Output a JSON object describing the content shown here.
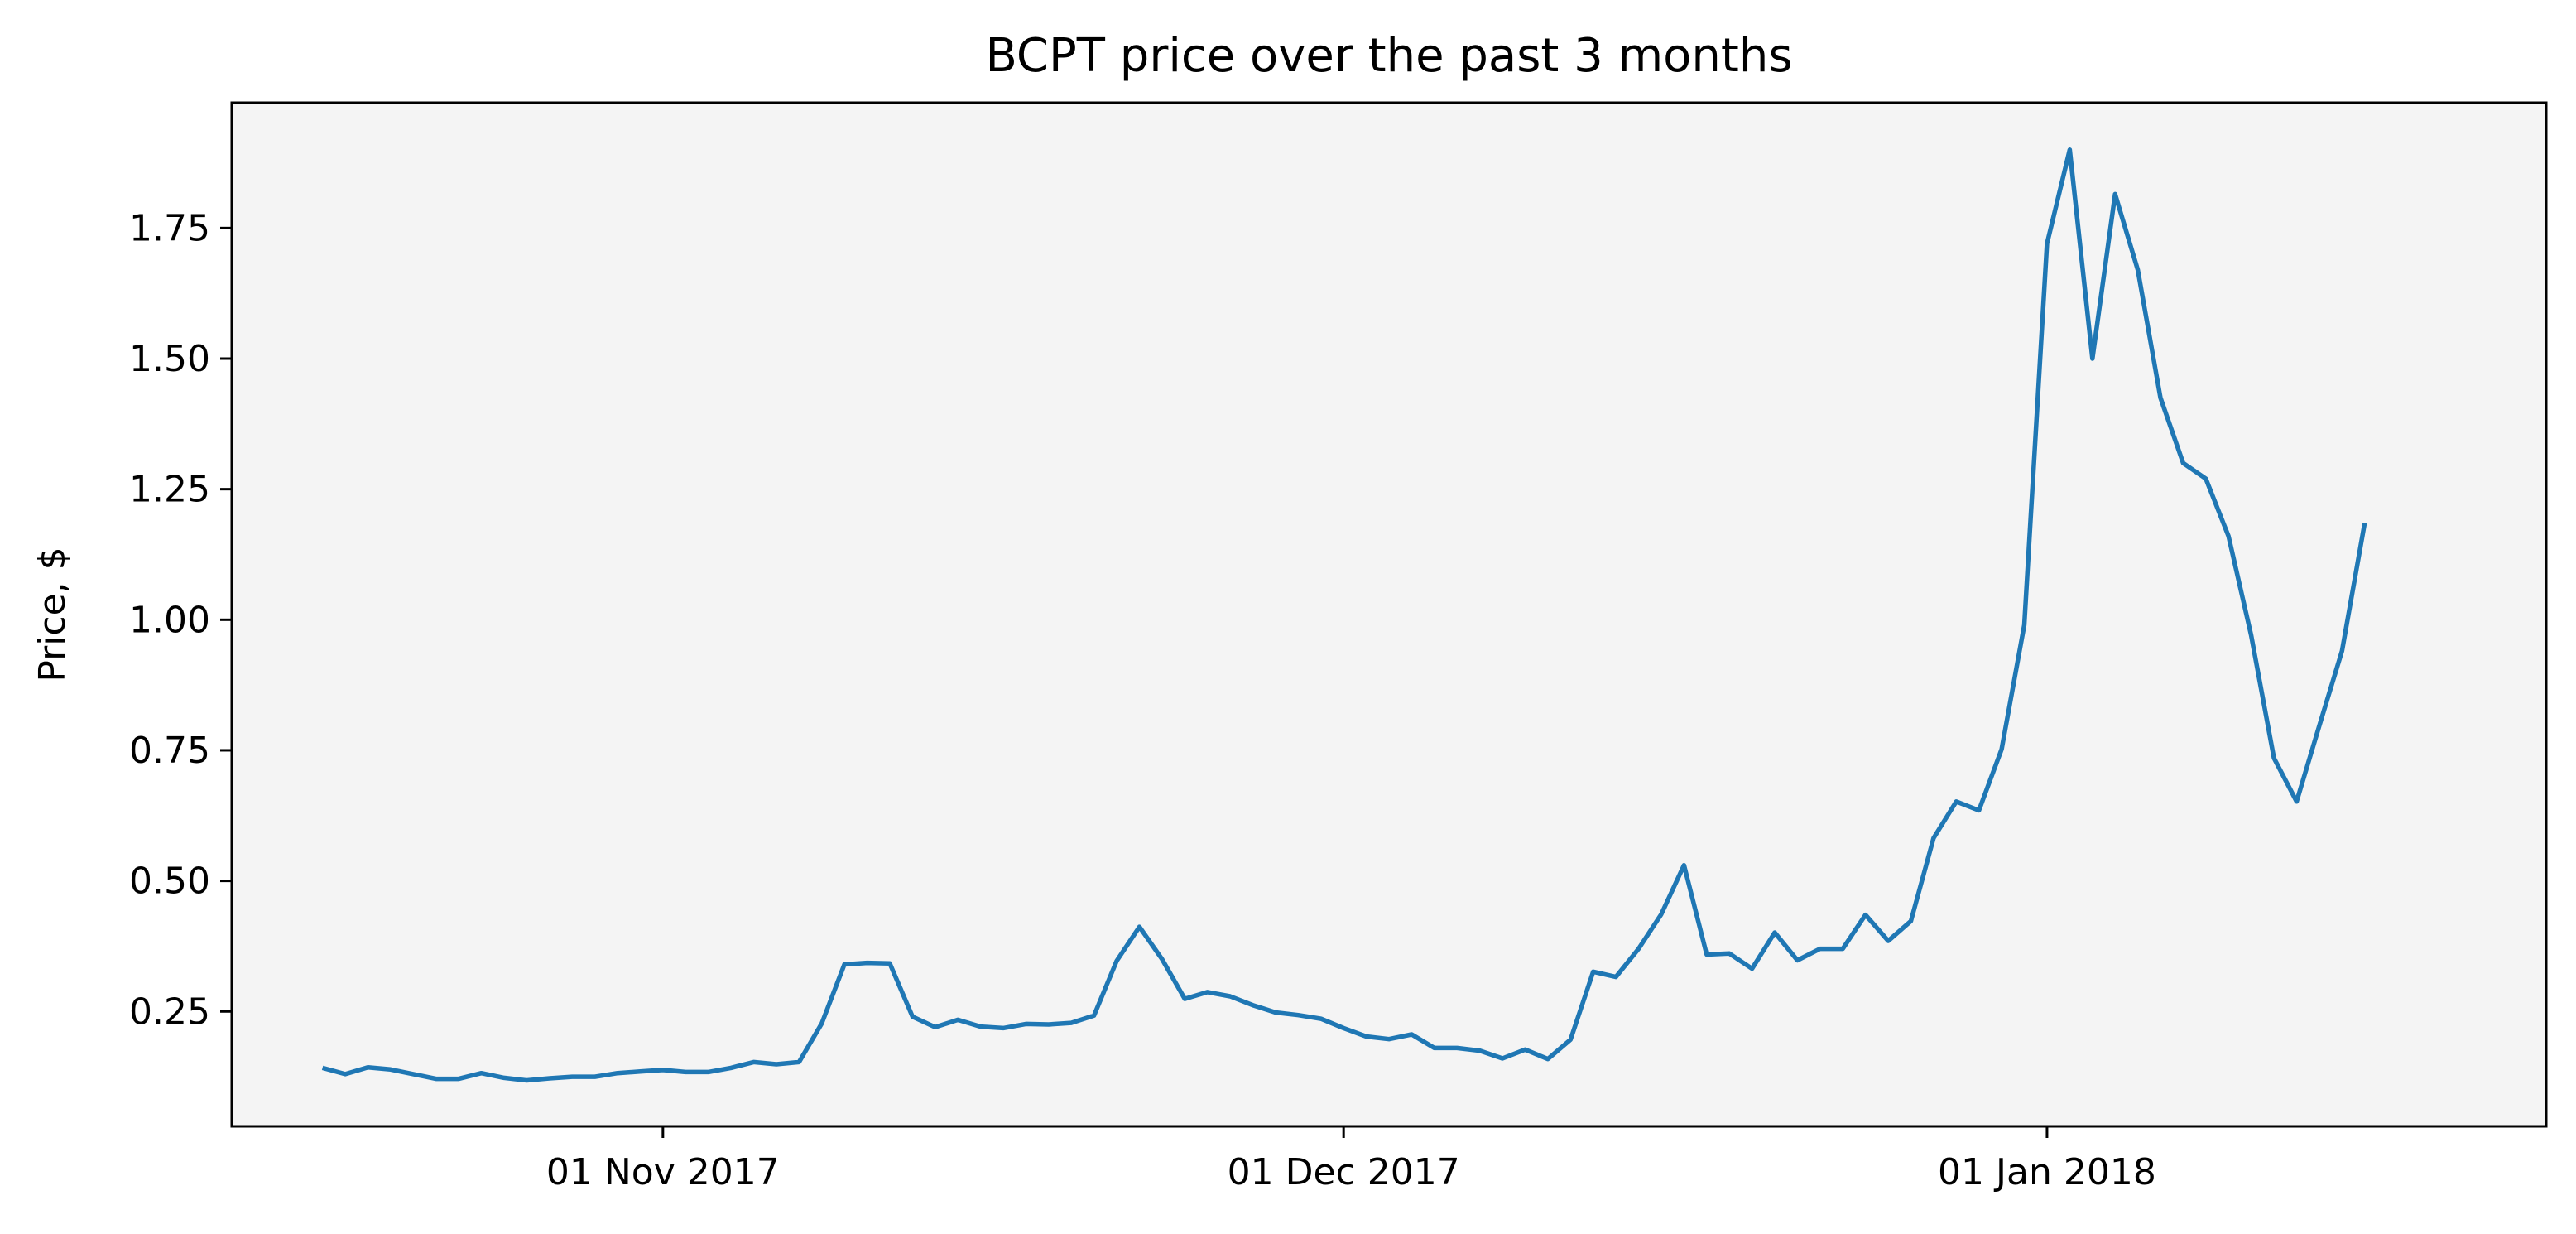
{
  "chart_data": {
    "type": "line",
    "title": "BCPT price over the past 3 months",
    "xlabel": "",
    "ylabel": "Price, $",
    "x_start": "2017-10-17",
    "x_step_days": 1,
    "xlim": [
      "2017-10-13",
      "2018-01-23"
    ],
    "ylim": [
      0.03,
      1.99
    ],
    "yticks": [
      0.25,
      0.5,
      0.75,
      1.0,
      1.25,
      1.5,
      1.75
    ],
    "ytick_labels": [
      "0.25",
      "0.50",
      "0.75",
      "1.00",
      "1.25",
      "1.50",
      "1.75"
    ],
    "xticks": [
      "2017-11-01",
      "2017-12-01",
      "2018-01-01"
    ],
    "xtick_labels": [
      "01 Nov 2017",
      "01 Dec 2017",
      "01 Jan 2018"
    ],
    "grid": false,
    "background": "#f4f4f4",
    "line_color": "#1f77b4",
    "series": [
      {
        "values": [
          0.142,
          0.13,
          0.143,
          0.139,
          0.13,
          0.121,
          0.121,
          0.132,
          0.123,
          0.118,
          0.122,
          0.125,
          0.125,
          0.132,
          0.135,
          0.138,
          0.134,
          0.134,
          0.142,
          0.153,
          0.149,
          0.153,
          0.227,
          0.34,
          0.343,
          0.342,
          0.24,
          0.22,
          0.234,
          0.221,
          0.218,
          0.226,
          0.225,
          0.228,
          0.242,
          0.347,
          0.412,
          0.35,
          0.274,
          0.287,
          0.279,
          0.262,
          0.248,
          0.243,
          0.236,
          0.218,
          0.202,
          0.197,
          0.206,
          0.18,
          0.18,
          0.175,
          0.16,
          0.177,
          0.159,
          0.196,
          0.326,
          0.316,
          0.37,
          0.436,
          0.53,
          0.359,
          0.361,
          0.332,
          0.401,
          0.348,
          0.37,
          0.37,
          0.435,
          0.385,
          0.423,
          0.582,
          0.652,
          0.635,
          0.752,
          0.99,
          1.72,
          1.9,
          1.5,
          1.815,
          1.67,
          1.425,
          1.3,
          1.27,
          1.16,
          0.97,
          0.735,
          0.652,
          0.797,
          0.94,
          1.185
        ]
      }
    ]
  }
}
